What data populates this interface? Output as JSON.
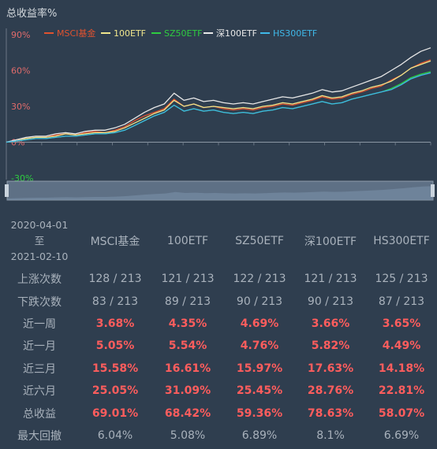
{
  "chart_data": {
    "type": "line",
    "title": "总收益率%",
    "ylim": [
      -30,
      90
    ],
    "yticks": [
      "90%",
      "60%",
      "30%",
      "0%",
      "-30%"
    ],
    "ytick_values": [
      90,
      60,
      30,
      0,
      -30
    ],
    "x_start": "2020-04-01",
    "x_end": "2021-02-10",
    "legend_position": "top",
    "series": [
      {
        "name": "MSCI基金",
        "color": "#e0522f",
        "values": [
          0,
          1,
          3,
          4,
          4,
          6,
          7,
          6,
          8,
          9,
          8,
          10,
          13,
          18,
          22,
          25,
          28,
          36,
          30,
          32,
          29,
          30,
          28,
          27,
          28,
          27,
          29,
          30,
          32,
          31,
          33,
          35,
          38,
          36,
          37,
          40,
          42,
          45,
          47,
          52,
          56,
          62,
          66,
          69
        ]
      },
      {
        "name": "100ETF",
        "color": "#f0e68c",
        "values": [
          0,
          1,
          3,
          4,
          4,
          5,
          7,
          6,
          7,
          8,
          8,
          9,
          12,
          16,
          20,
          24,
          27,
          35,
          30,
          32,
          29,
          30,
          29,
          28,
          29,
          28,
          30,
          31,
          33,
          32,
          34,
          36,
          39,
          37,
          38,
          41,
          43,
          46,
          48,
          51,
          56,
          62,
          65,
          68
        ]
      },
      {
        "name": "SZ50ETF",
        "color": "#2ecc40",
        "values": [
          0,
          1,
          2,
          3,
          3,
          4,
          5,
          5,
          6,
          7,
          7,
          8,
          10,
          14,
          18,
          22,
          25,
          31,
          26,
          28,
          26,
          27,
          25,
          24,
          25,
          24,
          26,
          27,
          29,
          28,
          30,
          32,
          34,
          32,
          33,
          36,
          38,
          40,
          42,
          45,
          49,
          54,
          57,
          59
        ]
      },
      {
        "name": "深100ETF",
        "color": "#e8e8e8",
        "values": [
          0,
          2,
          4,
          5,
          5,
          7,
          8,
          7,
          9,
          10,
          10,
          12,
          15,
          20,
          25,
          29,
          32,
          41,
          35,
          37,
          34,
          35,
          33,
          32,
          33,
          32,
          34,
          36,
          38,
          37,
          39,
          41,
          44,
          42,
          43,
          46,
          49,
          52,
          55,
          60,
          65,
          71,
          76,
          79
        ]
      },
      {
        "name": "HS300ETF",
        "color": "#3fb8e8",
        "values": [
          0,
          1,
          2,
          3,
          3,
          4,
          5,
          5,
          6,
          7,
          7,
          8,
          10,
          14,
          18,
          22,
          25,
          31,
          26,
          28,
          26,
          27,
          25,
          24,
          25,
          24,
          26,
          27,
          29,
          28,
          30,
          32,
          34,
          32,
          33,
          36,
          38,
          40,
          42,
          44,
          48,
          53,
          56,
          58
        ]
      }
    ]
  },
  "table": {
    "date_from": "2020-04-01",
    "date_sep": "至",
    "date_to": "2021-02-10",
    "columns": [
      "MSCI基金",
      "100ETF",
      "SZ50ETF",
      "深100ETF",
      "HS300ETF"
    ],
    "rows": [
      {
        "label": "上涨次数",
        "style": "neutral",
        "values": [
          "128 / 213",
          "121 / 213",
          "122 / 213",
          "121 / 213",
          "125 / 213"
        ]
      },
      {
        "label": "下跌次数",
        "style": "neutral",
        "values": [
          "83 / 213",
          "89 / 213",
          "90 / 213",
          "90 / 213",
          "87 / 213"
        ]
      },
      {
        "label": "近一周",
        "style": "red",
        "values": [
          "3.68%",
          "4.35%",
          "4.69%",
          "3.66%",
          "3.65%"
        ]
      },
      {
        "label": "近一月",
        "style": "red",
        "values": [
          "5.05%",
          "5.54%",
          "4.76%",
          "5.82%",
          "4.49%"
        ]
      },
      {
        "label": "近三月",
        "style": "red",
        "values": [
          "15.58%",
          "16.61%",
          "15.97%",
          "17.63%",
          "14.18%"
        ]
      },
      {
        "label": "近六月",
        "style": "red",
        "values": [
          "25.05%",
          "31.09%",
          "25.45%",
          "28.76%",
          "22.81%"
        ]
      },
      {
        "label": "总收益",
        "style": "red",
        "values": [
          "69.01%",
          "68.42%",
          "59.36%",
          "78.63%",
          "58.07%"
        ]
      },
      {
        "label": "最大回撤",
        "style": "neutral",
        "values": [
          "6.04%",
          "5.08%",
          "6.89%",
          "8.1%",
          "6.69%"
        ]
      }
    ]
  },
  "colors": {
    "background": "#2f3e4f",
    "positive": "#ff5d5d",
    "axis_label": "#e06b6b"
  }
}
